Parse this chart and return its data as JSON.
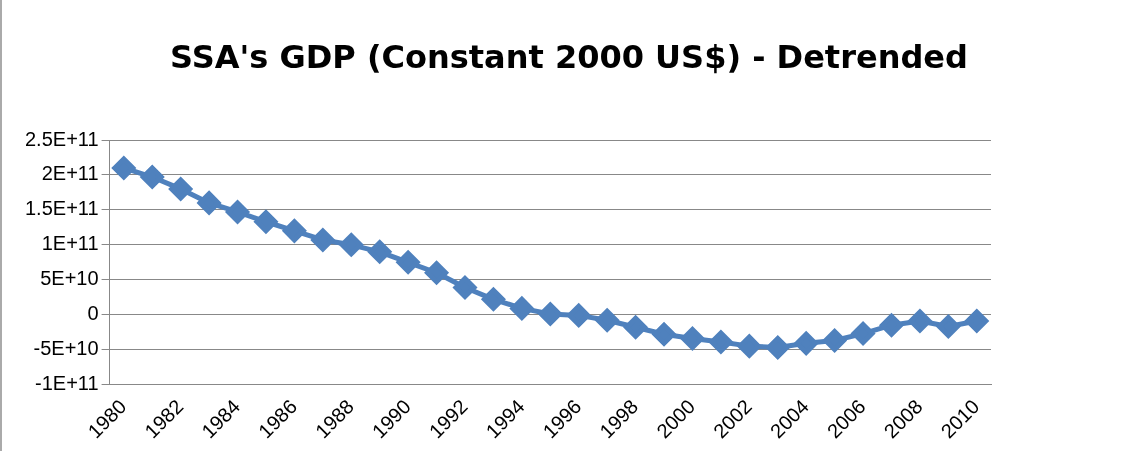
{
  "chart_data": {
    "type": "line",
    "title": "SSA's  GDP (Constant 2000 US$) - Detrended",
    "categories": [
      "1980",
      null,
      "1982",
      null,
      "1984",
      null,
      "1986",
      null,
      "1988",
      null,
      "1990",
      null,
      "1992",
      null,
      "1994",
      null,
      "1996",
      null,
      "1998",
      null,
      "2000",
      null,
      "2002",
      null,
      "2004",
      null,
      "2006",
      null,
      "2008",
      null,
      "2010"
    ],
    "series": [
      {
        "color": "#4f81bd",
        "values": [
          210000000000.0,
          197000000000.0,
          180000000000.0,
          160000000000.0,
          147000000000.0,
          133000000000.0,
          120000000000.0,
          107000000000.0,
          100000000000.0,
          90000000000.0,
          75000000000.0,
          60000000000.0,
          39000000000.0,
          22000000000.0,
          9000000000.0,
          1000000000.0,
          -1000000000.0,
          -8000000000.0,
          -18000000000.0,
          -28000000000.0,
          -34000000000.0,
          -39000000000.0,
          -45000000000.0,
          -47000000000.0,
          -41000000000.0,
          -37000000000.0,
          -27000000000.0,
          -15000000000.0,
          -9000000000.0,
          -17000000000.0,
          -9000000000.0
        ]
      }
    ],
    "ylim": [
      -100000000000.0,
      250000000000.0
    ],
    "yticks": [
      {
        "value": -100000000000.0,
        "label": "-1E+11"
      },
      {
        "value": -50000000000.0,
        "label": "-5E+10"
      },
      0,
      {
        "value": 50000000000.0,
        "label": "5E+10"
      },
      {
        "value": 100000000000.0,
        "label": "1E+11"
      },
      {
        "value": 150000000000.0,
        "label": "1.5E+11"
      },
      {
        "value": 200000000000.0,
        "label": "2E+11"
      },
      {
        "value": 250000000000.0,
        "label": "2.5E+11"
      }
    ],
    "grid": "y",
    "legend": false,
    "marker": "diamond",
    "line_style": "solid"
  }
}
